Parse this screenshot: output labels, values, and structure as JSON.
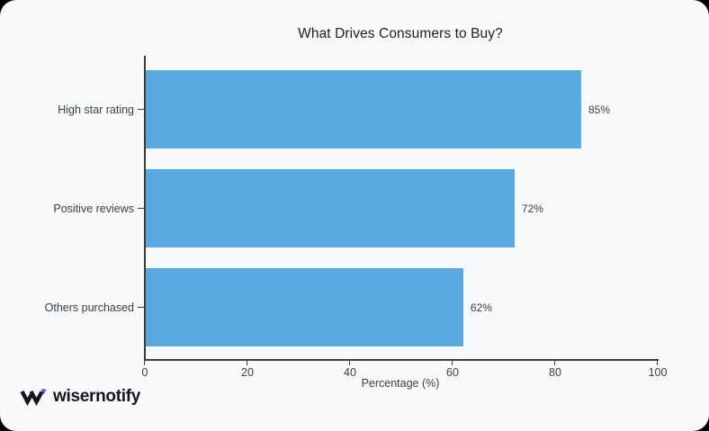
{
  "page": {
    "outer_background": "#000000",
    "card_background": "#f8f9fa"
  },
  "chart_data": {
    "type": "bar",
    "orientation": "horizontal",
    "title": "What Drives Consumers to Buy?",
    "categories": [
      "High star rating",
      "Positive reviews",
      "Others purchased"
    ],
    "values": [
      85,
      72,
      62
    ],
    "value_labels": [
      "85%",
      "72%",
      "62%"
    ],
    "xlabel": "Percentage (%)",
    "ylabel": "",
    "xlim": [
      0,
      100
    ],
    "x_ticks": [
      "0",
      "20",
      "40",
      "60",
      "80",
      "100"
    ],
    "x_tick_values": [
      0,
      20,
      40,
      60,
      80,
      100
    ],
    "bar_color": "#5BA9E1",
    "axis_color": "#3c3c3c",
    "grid": false,
    "legend": false
  },
  "footer": {
    "logo_text": "wisernotify",
    "logo_icon": "wisernotify-w-icon",
    "logo_icon_accent": "#5a4cf0",
    "logo_icon_dark": "#17171f"
  }
}
